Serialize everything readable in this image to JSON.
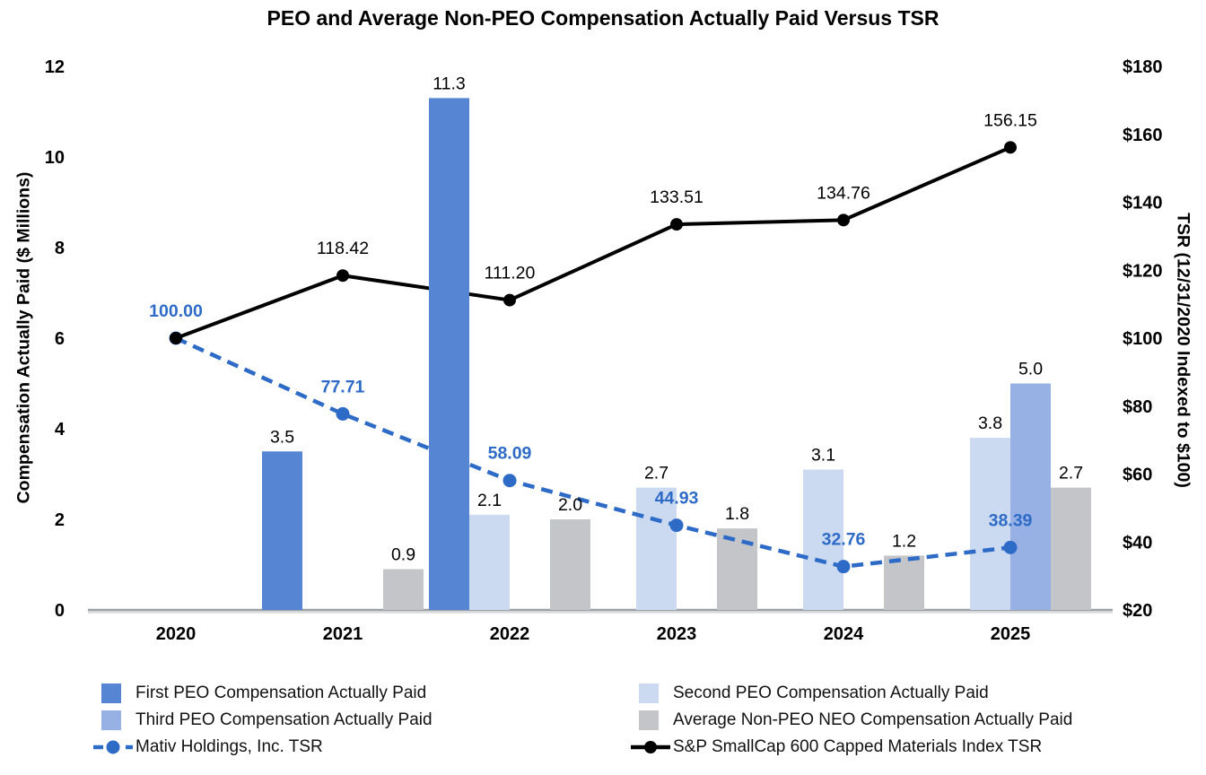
{
  "title": "PEO and Average Non-PEO Compensation Actually Paid Versus TSR",
  "chart_data": {
    "type": "combo-bar-line",
    "grid": false,
    "legend_position": "bottom-two-columns",
    "categories": [
      "2020",
      "2021",
      "2022",
      "2023",
      "2024",
      "2025"
    ],
    "bar_series": [
      {
        "key": "first-peo",
        "name": "First PEO Compensation Actually Paid",
        "color": "#5585D3",
        "axis": "left",
        "values": [
          null,
          3.5,
          11.3,
          null,
          null,
          null
        ],
        "value_labels": [
          null,
          "3.5",
          "11.3",
          null,
          null,
          null
        ]
      },
      {
        "key": "second-peo",
        "name": "Second PEO Compensation Actually Paid",
        "color": "#CBDAF1",
        "axis": "left",
        "values": [
          null,
          null,
          2.1,
          2.7,
          3.1,
          3.8
        ],
        "value_labels": [
          null,
          null,
          "2.1",
          "2.7",
          "3.1",
          "3.8"
        ]
      },
      {
        "key": "third-peo",
        "name": "Third PEO Compensation Actually Paid",
        "color": "#98B1E5",
        "axis": "left",
        "values": [
          null,
          null,
          null,
          null,
          null,
          5.0
        ],
        "value_labels": [
          null,
          null,
          null,
          null,
          null,
          "5.0"
        ]
      },
      {
        "key": "avg-non-peo",
        "name": "Average Non-PEO NEO Compensation Actually Paid",
        "color": "#C3C5C9",
        "axis": "left",
        "values": [
          null,
          0.9,
          2.0,
          1.8,
          1.2,
          2.7
        ],
        "value_labels": [
          null,
          "0.9",
          "2.0",
          "1.8",
          "1.2",
          "2.7"
        ]
      }
    ],
    "line_series": [
      {
        "key": "mativ-tsr",
        "name": "Mativ Holdings, Inc. TSR",
        "color": "#2E6BC7",
        "dash": true,
        "axis": "right",
        "values": [
          100.0,
          77.71,
          58.09,
          44.93,
          32.76,
          38.39
        ],
        "point_labels": [
          "100.00",
          "77.71",
          "58.09",
          "44.93",
          "32.76",
          "38.39"
        ]
      },
      {
        "key": "sp600-tsr",
        "name": "S&P SmallCap 600 Capped Materials Index TSR",
        "color": "#000000",
        "dash": false,
        "axis": "right",
        "values": [
          100.0,
          118.42,
          111.2,
          133.51,
          134.76,
          156.15
        ],
        "point_labels": [
          null,
          "118.42",
          "111.20",
          "133.51",
          "134.76",
          "156.15"
        ]
      }
    ],
    "left_axis": {
      "title": "Compensation Actually Paid ($ Millions)",
      "min": 0,
      "max": 12,
      "tick_step": 2,
      "tick_labels": [
        "0",
        "2",
        "4",
        "6",
        "8",
        "10",
        "12"
      ]
    },
    "right_axis": {
      "title": "TSR (12/31/2020 Indexed to $100)",
      "min": 20,
      "max": 180,
      "tick_step": 20,
      "tick_labels": [
        "$20",
        "$40",
        "$60",
        "$80",
        "$100",
        "$120",
        "$140",
        "$160",
        "$180"
      ]
    }
  },
  "legend": {
    "columns": [
      {
        "items": [
          {
            "label": "First PEO Compensation Actually Paid",
            "marker": "square",
            "color": "#5585D3"
          },
          {
            "label": "Third PEO Compensation Actually Paid",
            "marker": "square",
            "color": "#98B1E5"
          },
          {
            "label": "Mativ Holdings, Inc. TSR",
            "marker": "dashed-line-dot",
            "color": "#2E6BC7"
          }
        ]
      },
      {
        "items": [
          {
            "label": "Second PEO Compensation Actually Paid",
            "marker": "square",
            "color": "#CBDAF1"
          },
          {
            "label": "Average Non-PEO NEO Compensation Actually Paid",
            "marker": "square",
            "color": "#C3C5C9"
          },
          {
            "label": "S&P SmallCap 600 Capped Materials Index TSR",
            "marker": "solid-line-dot",
            "color": "#000000"
          }
        ]
      }
    ]
  }
}
